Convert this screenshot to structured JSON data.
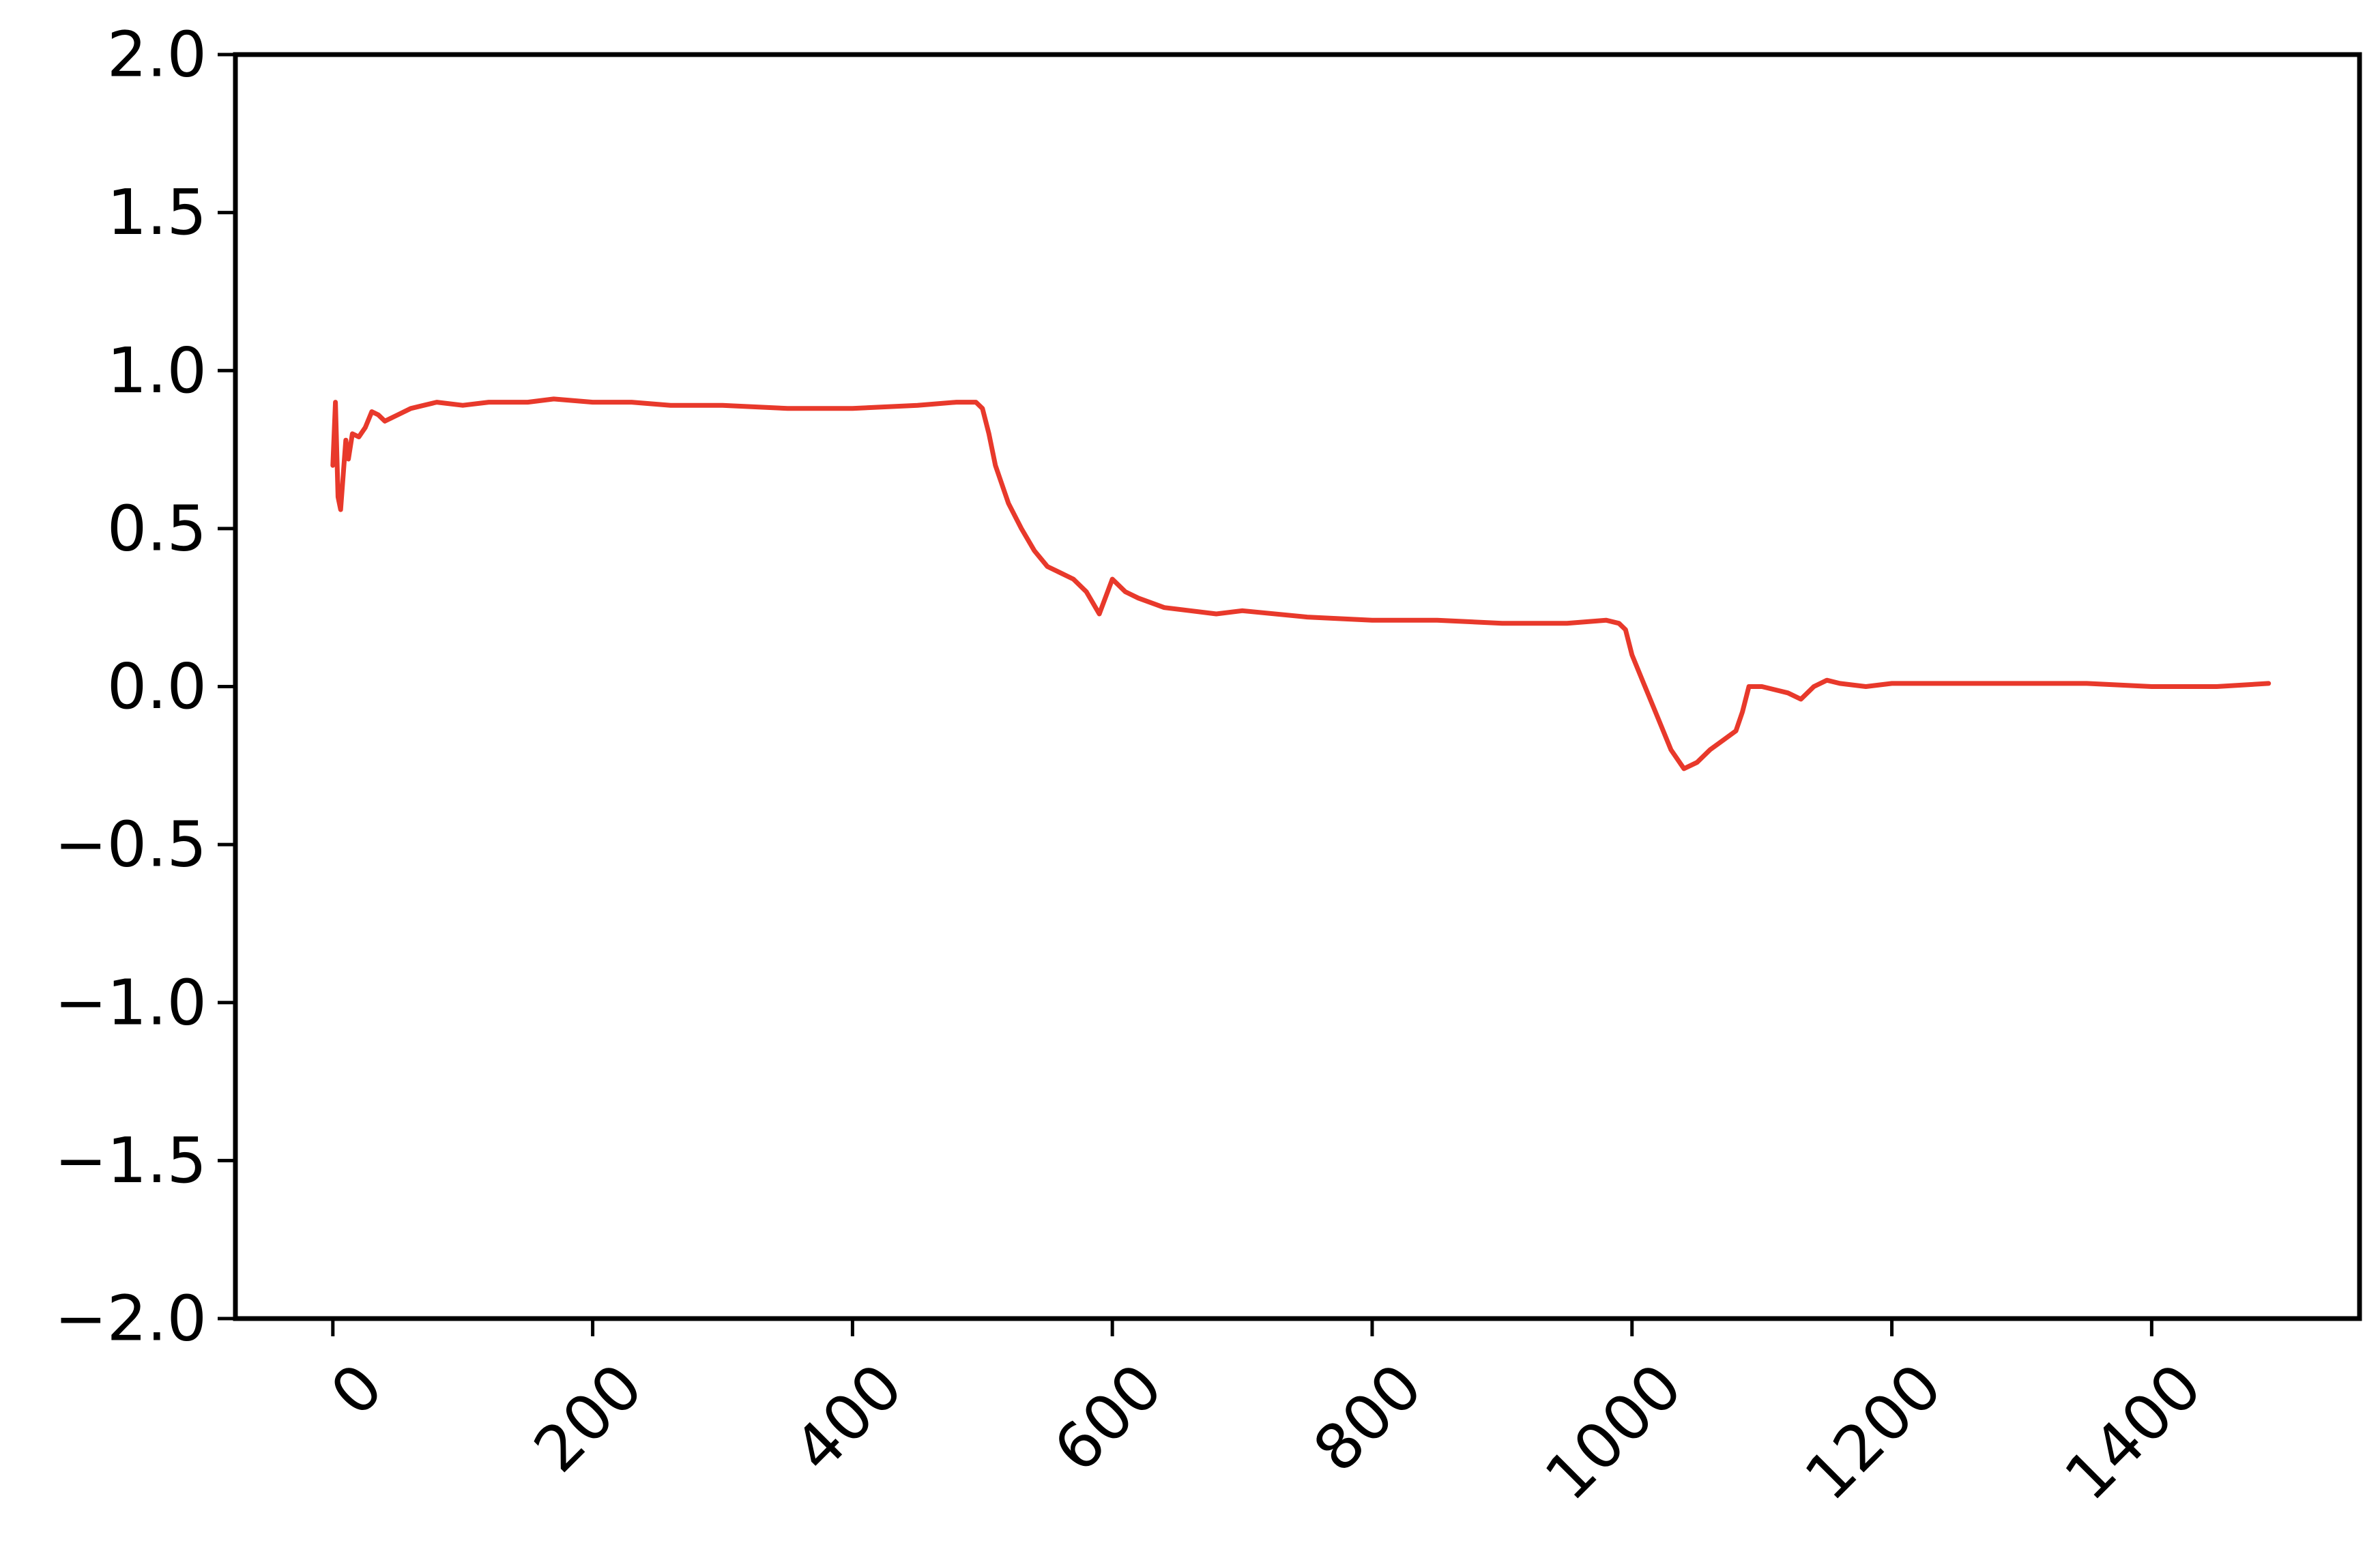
{
  "chart_data": {
    "type": "line",
    "title": "",
    "xlabel": "",
    "ylabel": "",
    "xlim": [
      -75,
      1560
    ],
    "ylim": [
      -2.0,
      2.0
    ],
    "grid": false,
    "legend": "none",
    "x_ticks": [
      0,
      200,
      400,
      600,
      800,
      1000,
      1200,
      1400
    ],
    "x_tick_labels": [
      "0",
      "200",
      "400",
      "600",
      "800",
      "1000",
      "1200",
      "1400"
    ],
    "y_ticks": [
      2.0,
      1.5,
      1.0,
      0.5,
      0.0,
      -0.5,
      -1.0,
      -1.5,
      -2.0
    ],
    "y_tick_labels": [
      "2.0",
      "1.5",
      "1.0",
      "0.5",
      "0.0",
      "−0.5",
      "−1.0",
      "−1.5",
      "−2.0"
    ],
    "series": [
      {
        "color": "#e8392b",
        "x": [
          0,
          2,
          4,
          6,
          8,
          10,
          12,
          15,
          20,
          25,
          30,
          35,
          40,
          45,
          50,
          60,
          70,
          80,
          100,
          120,
          150,
          170,
          200,
          230,
          260,
          300,
          350,
          400,
          450,
          480,
          490,
          495,
          500,
          505,
          510,
          520,
          530,
          540,
          550,
          560,
          570,
          580,
          590,
          600,
          610,
          620,
          640,
          660,
          680,
          700,
          750,
          800,
          850,
          900,
          950,
          980,
          990,
          995,
          1000,
          1010,
          1020,
          1030,
          1040,
          1050,
          1060,
          1070,
          1080,
          1085,
          1090,
          1100,
          1110,
          1120,
          1130,
          1140,
          1150,
          1160,
          1180,
          1200,
          1250,
          1300,
          1350,
          1400,
          1450,
          1490
        ],
        "y": [
          0.7,
          0.9,
          0.6,
          0.56,
          0.67,
          0.78,
          0.72,
          0.8,
          0.79,
          0.82,
          0.87,
          0.86,
          0.84,
          0.85,
          0.86,
          0.88,
          0.89,
          0.9,
          0.89,
          0.9,
          0.9,
          0.91,
          0.9,
          0.9,
          0.89,
          0.89,
          0.88,
          0.88,
          0.89,
          0.9,
          0.9,
          0.9,
          0.88,
          0.8,
          0.7,
          0.58,
          0.5,
          0.43,
          0.38,
          0.36,
          0.34,
          0.3,
          0.23,
          0.34,
          0.3,
          0.28,
          0.25,
          0.24,
          0.23,
          0.24,
          0.22,
          0.21,
          0.21,
          0.2,
          0.2,
          0.21,
          0.2,
          0.18,
          0.1,
          0.0,
          -0.1,
          -0.2,
          -0.26,
          -0.24,
          -0.2,
          -0.17,
          -0.14,
          -0.08,
          0.0,
          0.0,
          -0.01,
          -0.02,
          -0.04,
          0.0,
          0.02,
          0.01,
          0.0,
          0.01,
          0.01,
          0.01,
          0.01,
          0.0,
          0.0,
          0.01
        ]
      }
    ]
  }
}
